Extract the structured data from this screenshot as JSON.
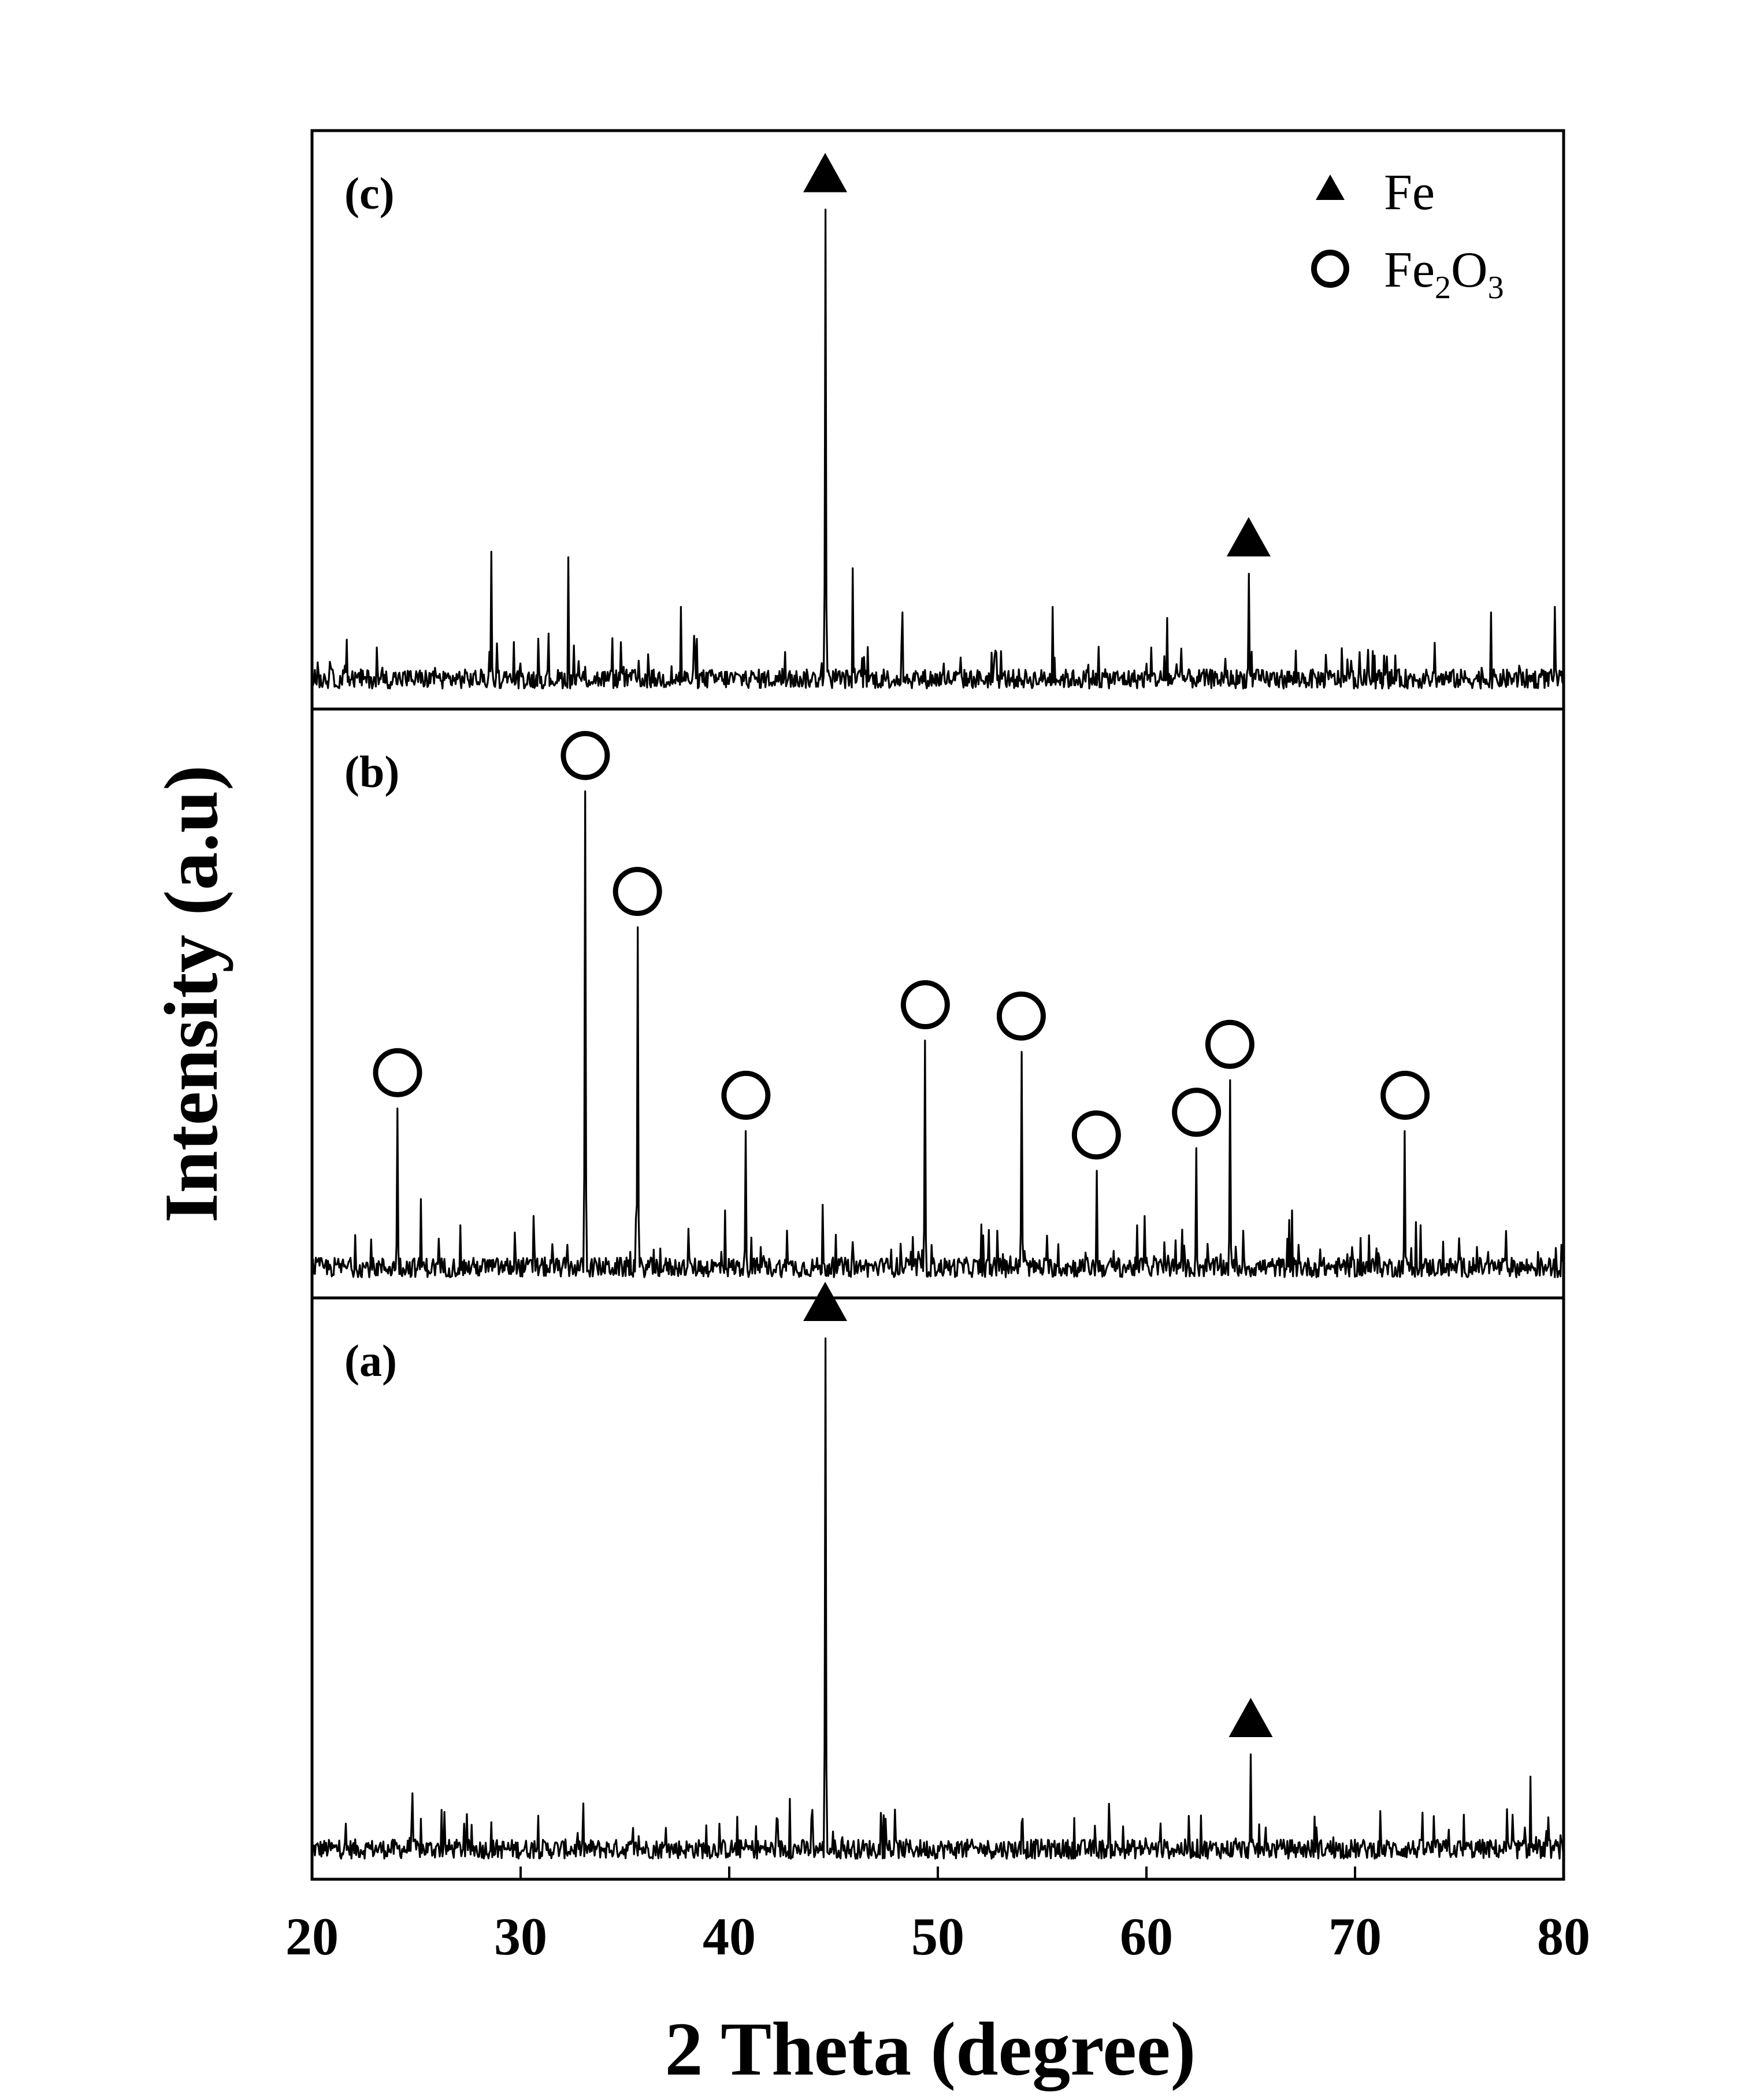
{
  "chart_data": {
    "type": "line",
    "xlabel": "2 Theta (degree)",
    "ylabel": "Intensity (a.u)",
    "xlim": [
      20,
      80
    ],
    "xticks": [
      20,
      30,
      40,
      50,
      60,
      70,
      80
    ],
    "grid": false,
    "legend_position": "top-right",
    "legend": [
      {
        "marker": "filled-triangle",
        "label": "Fe"
      },
      {
        "marker": "open-circle",
        "label": "Fe2O3",
        "label_main": "Fe",
        "sub1": "2",
        "mid": "O",
        "sub2": "3"
      }
    ],
    "series": [
      {
        "name": "(a)",
        "panel_label": "(a)",
        "peaks": [
          {
            "x": 44.6,
            "height": 0.95,
            "phase": "Fe"
          },
          {
            "x": 65.0,
            "height": 0.2,
            "phase": "Fe"
          }
        ],
        "noise_spikes": [
          [
            78.4,
            0.16
          ],
          [
            24.8,
            0.13
          ],
          [
            26.2,
            0.1
          ],
          [
            42.9,
            0.12
          ],
          [
            44.0,
            0.1
          ],
          [
            62.6,
            0.09
          ]
        ]
      },
      {
        "name": "(b)",
        "panel_label": "(b)",
        "peaks": [
          {
            "x": 24.1,
            "height": 0.31,
            "phase": "Fe2O3"
          },
          {
            "x": 33.1,
            "height": 0.87,
            "phase": "Fe2O3"
          },
          {
            "x": 35.6,
            "height": 0.63,
            "phase": "Fe2O3"
          },
          {
            "x": 40.8,
            "height": 0.27,
            "phase": "Fe2O3"
          },
          {
            "x": 49.4,
            "height": 0.43,
            "phase": "Fe2O3"
          },
          {
            "x": 54.0,
            "height": 0.41,
            "phase": "Fe2O3"
          },
          {
            "x": 57.6,
            "height": 0.2,
            "phase": "Fe2O3"
          },
          {
            "x": 62.4,
            "height": 0.24,
            "phase": "Fe2O3"
          },
          {
            "x": 64.0,
            "height": 0.36,
            "phase": "Fe2O3"
          },
          {
            "x": 72.4,
            "height": 0.27,
            "phase": "Fe2O3"
          }
        ],
        "noise_spikes": [
          [
            25.2,
            0.15
          ],
          [
            30.6,
            0.12
          ],
          [
            39.8,
            0.13
          ],
          [
            44.5,
            0.14
          ],
          [
            59.9,
            0.12
          ],
          [
            67.0,
            0.13
          ]
        ]
      },
      {
        "name": "(c)",
        "panel_label": "(c)",
        "peaks": [
          {
            "x": 44.6,
            "height": 0.88,
            "phase": "Fe"
          },
          {
            "x": 64.9,
            "height": 0.22,
            "phase": "Fe"
          }
        ],
        "noise_spikes": [
          [
            28.6,
            0.26
          ],
          [
            32.3,
            0.25
          ],
          [
            37.7,
            0.16
          ],
          [
            45.9,
            0.23
          ],
          [
            48.3,
            0.15
          ],
          [
            55.5,
            0.16
          ],
          [
            61.0,
            0.14
          ],
          [
            76.5,
            0.15
          ],
          [
            79.6,
            0.16
          ]
        ]
      }
    ]
  }
}
